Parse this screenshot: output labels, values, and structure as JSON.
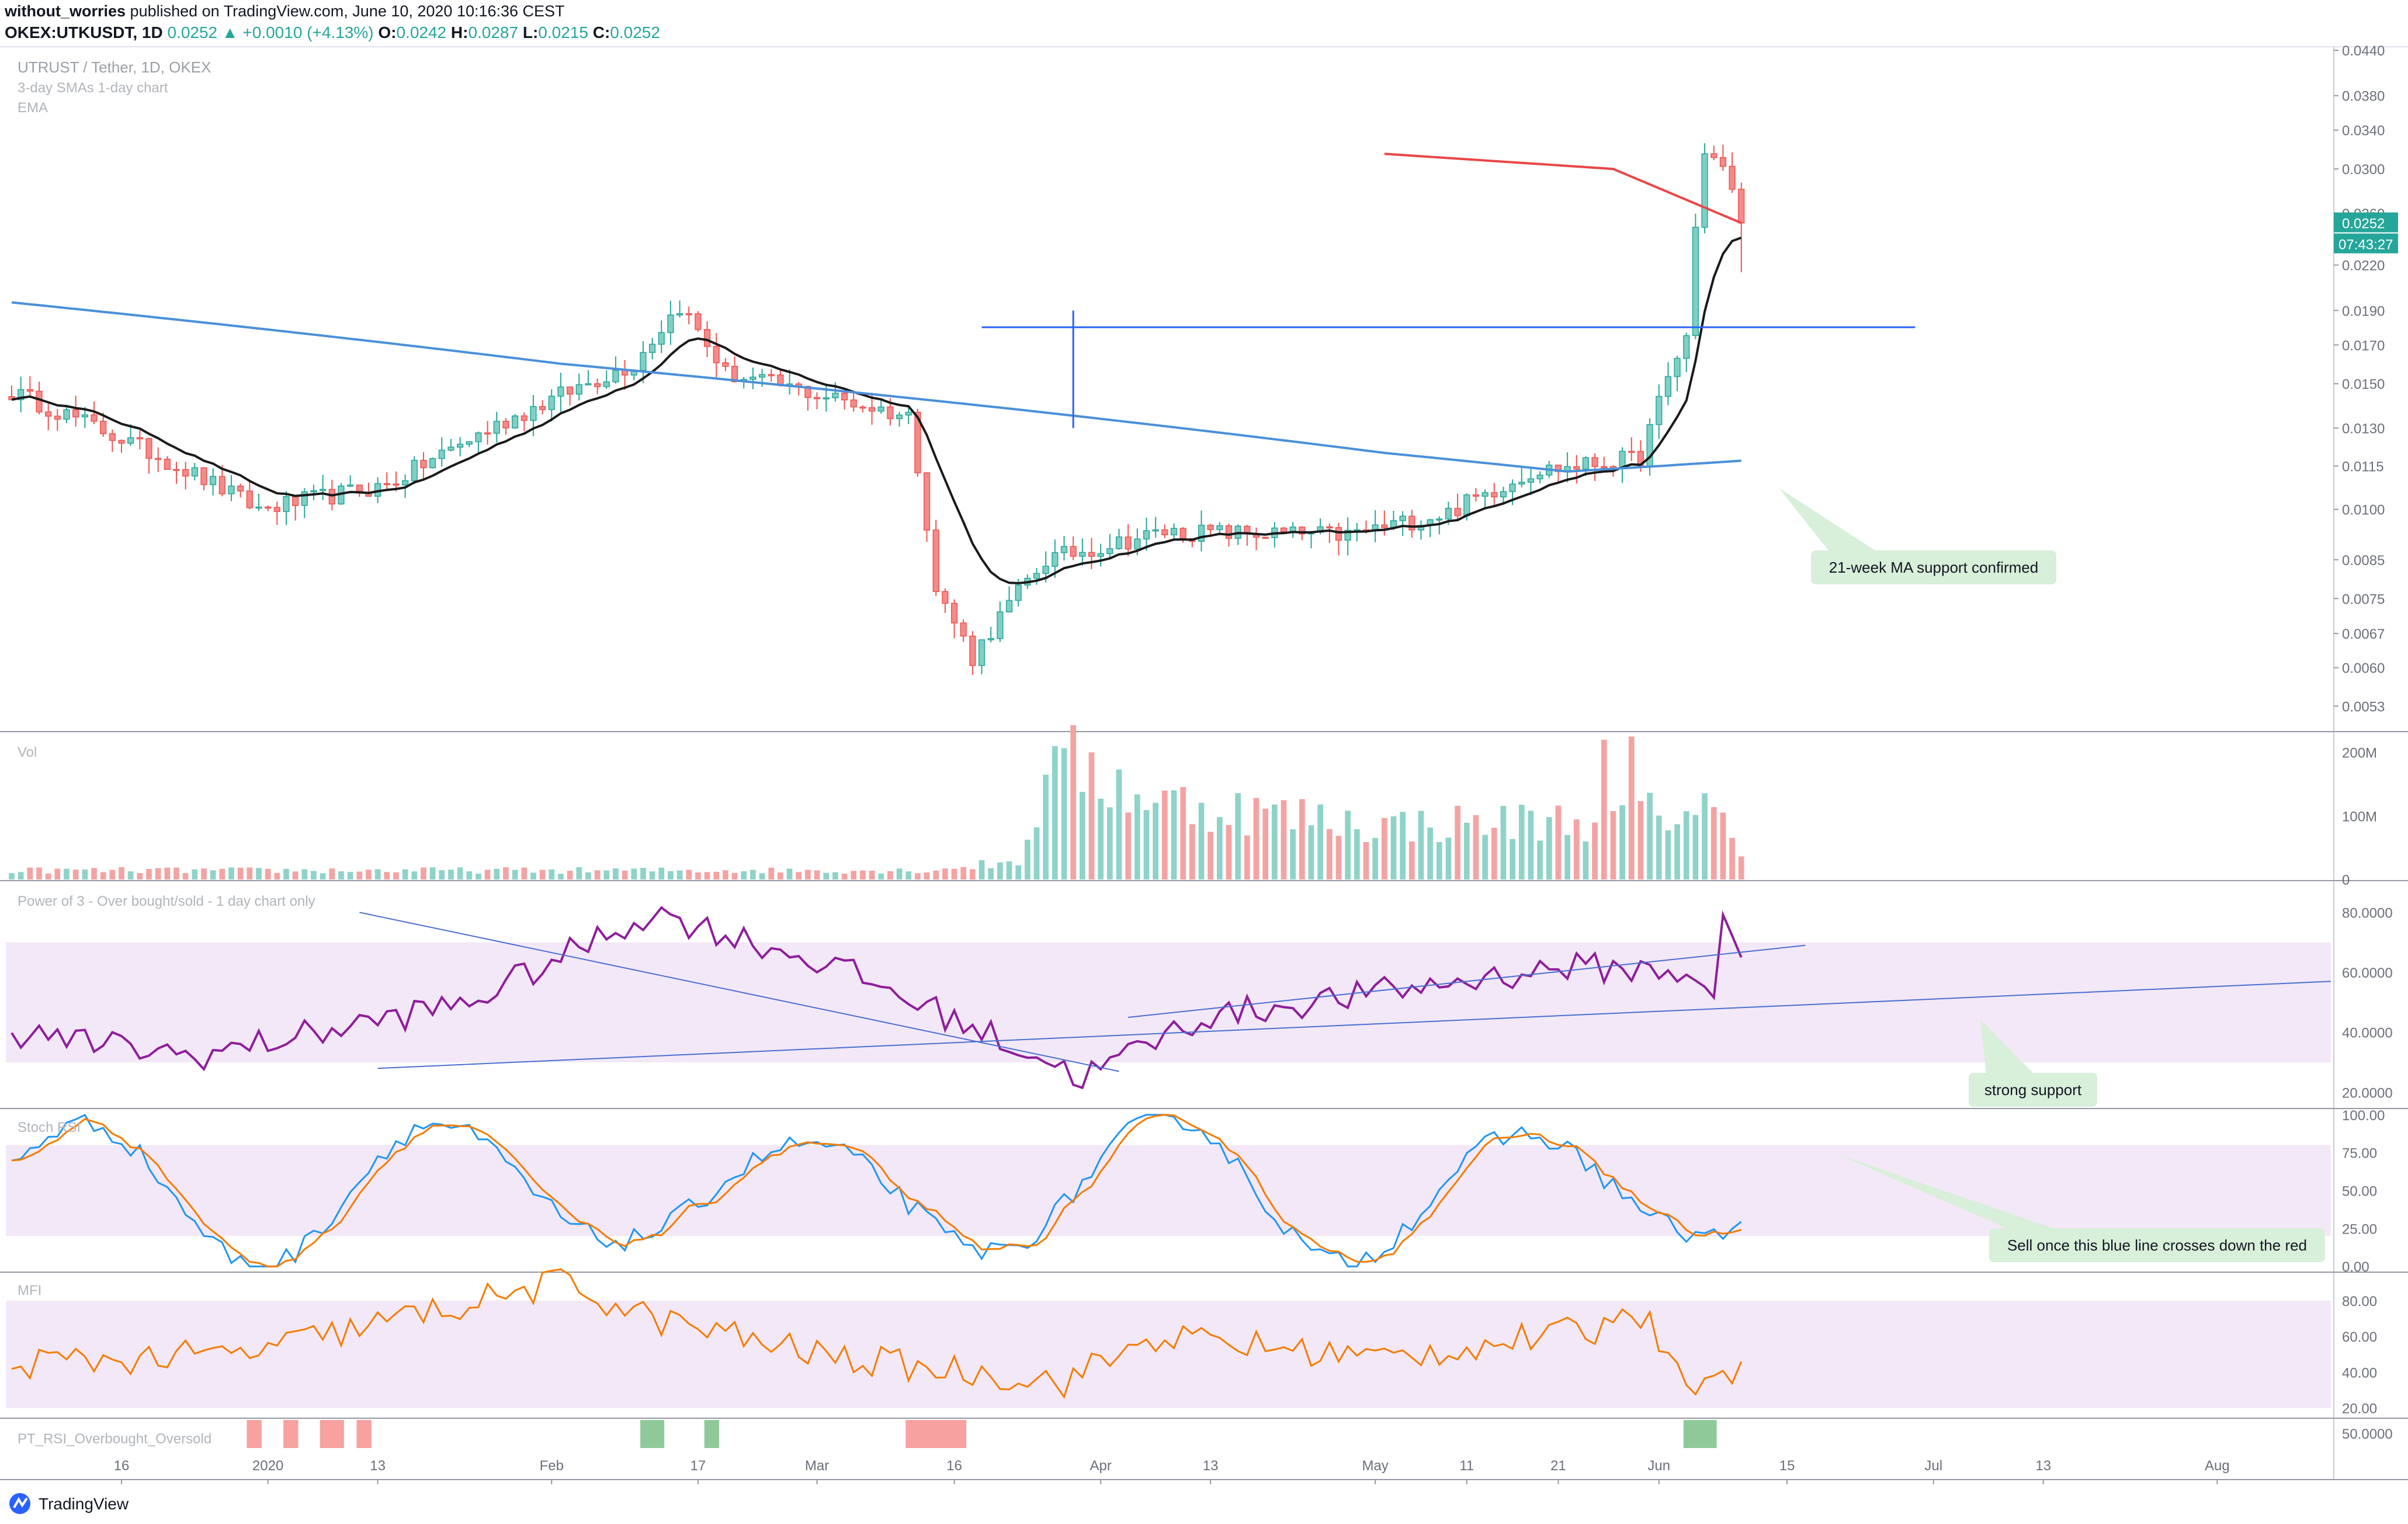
{
  "header": {
    "author": "without_worries",
    "published": "published on TradingView.com, June 10, 2020 10:16:36 CEST",
    "symbol_line": "OKEX:UTKUSDT, 1D",
    "last": "0.0252",
    "change": "+0.0010 (+4.13%)",
    "open_label": "O:",
    "open": "0.0242",
    "high_label": "H:",
    "high": "0.0287",
    "low_label": "L:",
    "low": "0.0215",
    "close_label": "C:",
    "close": "0.0252"
  },
  "main_legend": {
    "title": "UTRUST / Tether, 1D, OKEX",
    "line2": "3-day SMAs 1-day chart",
    "line3": "EMA"
  },
  "price_axis": {
    "ticks": [
      "0.0440",
      "0.0380",
      "0.0340",
      "0.0300",
      "0.0260",
      "0.0220",
      "0.0190",
      "0.0170",
      "0.0150",
      "0.0130",
      "0.0115",
      "0.0100",
      "0.0085",
      "0.0075",
      "0.0067",
      "0.0060",
      "0.0053"
    ],
    "last_price_label": "0.0252",
    "countdown_label": "07:43:27"
  },
  "volume_pane": {
    "title": "Vol",
    "ticks": [
      "200M",
      "100M",
      "0"
    ]
  },
  "power3_pane": {
    "title": "Power of 3 - Over bought/sold - 1 day chart only",
    "ticks": [
      "80.0000",
      "60.0000",
      "40.0000",
      "20.0000"
    ]
  },
  "stochrsi_pane": {
    "title": "Stoch RSI",
    "ticks": [
      "100.00",
      "75.00",
      "50.00",
      "25.00",
      "0.00"
    ]
  },
  "mfi_pane": {
    "title": "MFI",
    "ticks": [
      "80.00",
      "60.00",
      "40.00",
      "20.00"
    ]
  },
  "ptrsi_pane": {
    "title": "PT_RSI_Overbought_Oversold",
    "ticks": [
      "50.0000"
    ]
  },
  "time_axis": {
    "labels": [
      "16",
      "2020",
      "13",
      "Feb",
      "17",
      "Mar",
      "16",
      "Apr",
      "13",
      "May",
      "11",
      "21",
      "Jun",
      "15",
      "Jul",
      "13",
      "Aug"
    ]
  },
  "annotations": {
    "ma_support": "21-week MA support confirmed",
    "strong_support": "strong support",
    "sell_note": "Sell once this blue line crosses down the red"
  },
  "footer": {
    "logo_text": "TradingView"
  },
  "colors": {
    "up": "#26a69a",
    "down": "#ef5350",
    "up_candle_fill": "#7fcfc4",
    "down_candle_fill": "#f48a8a",
    "ema_black": "#1a1a1a",
    "ma_blue": "#4a90d9",
    "red_ma": "#e84747",
    "power3": "#8e1e9b",
    "stoch_k": "#2196f3",
    "stoch_d": "#f57c00",
    "mfi": "#f57c00",
    "band": "#f3e8f7",
    "callout": "#d8efd9"
  },
  "chart_data": [
    {
      "type": "candlestick",
      "title": "UTRUST / Tether, 1D, OKEX",
      "scale": "log",
      "ylim": [
        0.0049,
        0.0445
      ],
      "x_range": [
        "2019-12-04",
        "2020-08-08"
      ],
      "candles_date_span": [
        "2019-12-04",
        "2020-06-10"
      ],
      "key_points": [
        {
          "date": "2019-12-04",
          "close": 0.0146
        },
        {
          "date": "2019-12-31",
          "close": 0.01
        },
        {
          "date": "2020-01-14",
          "close": 0.0108
        },
        {
          "date": "2020-02-10",
          "close": 0.016
        },
        {
          "date": "2020-02-15",
          "close": 0.0193
        },
        {
          "date": "2020-02-20",
          "close": 0.0155
        },
        {
          "date": "2020-03-11",
          "close": 0.0135
        },
        {
          "date": "2020-03-14",
          "close": 0.0077
        },
        {
          "date": "2020-03-18",
          "close": 0.0062
        },
        {
          "date": "2020-03-26",
          "close": 0.0085
        },
        {
          "date": "2020-04-08",
          "close": 0.0093
        },
        {
          "date": "2020-04-28",
          "close": 0.0092
        },
        {
          "date": "2020-05-09",
          "close": 0.0099
        },
        {
          "date": "2020-05-18",
          "close": 0.0113
        },
        {
          "date": "2020-05-30",
          "close": 0.0118
        },
        {
          "date": "2020-06-04",
          "close": 0.0175
        },
        {
          "date": "2020-06-06",
          "close": 0.032
        },
        {
          "date": "2020-06-08",
          "close": 0.03
        },
        {
          "date": "2020-06-10",
          "close": 0.0252
        }
      ],
      "overlays": [
        {
          "name": "EMA",
          "color": "black",
          "start": 0.0155,
          "end": 0.018
        },
        {
          "name": "21-week MA",
          "color": "blue",
          "start": 0.0195,
          "end": 0.0117
        },
        {
          "name": "red MA",
          "color": "red",
          "start": 0.0315,
          "end": 0.0252
        },
        {
          "name": "horizontal level",
          "value": 0.018
        }
      ]
    },
    {
      "type": "bar",
      "title": "Vol",
      "ylim": [
        0,
        230000000
      ],
      "peaks": [
        {
          "date": "2020-03-27",
          "value": 210000000
        },
        {
          "date": "2020-05-26",
          "value": 220000000
        },
        {
          "date": "2020-05-29",
          "value": 225000000
        }
      ]
    },
    {
      "type": "line",
      "title": "Power of 3 - Over bought/sold - 1 day chart only",
      "ylim": [
        15,
        90
      ],
      "band": [
        30,
        70
      ],
      "key_points": [
        {
          "date": "2020-02-12",
          "value": 80
        },
        {
          "date": "2020-03-22",
          "value": 25
        },
        {
          "date": "2020-06-07",
          "value": 84
        },
        {
          "date": "2020-06-10",
          "value": 65
        }
      ]
    },
    {
      "type": "line",
      "title": "Stoch RSI",
      "ylim": [
        -3,
        103
      ],
      "band": [
        20,
        80
      ],
      "series": [
        {
          "values_summary": "oscillates 0–100"
        },
        {
          "values_summary": "oscillates 0–100"
        }
      ]
    },
    {
      "type": "line",
      "title": "MFI",
      "ylim": [
        15,
        95
      ],
      "band": [
        20,
        80
      ],
      "key_points": [
        {
          "date": "2020-02-04",
          "value": 90
        },
        {
          "date": "2020-05-26",
          "value": 83
        },
        {
          "date": "2020-06-10",
          "value": 46
        }
      ]
    },
    {
      "type": "bar",
      "title": "PT_RSI_Overbought_Oversold",
      "events": [
        {
          "start": "2019-12-30",
          "end": "2019-12-31",
          "color": "red"
        },
        {
          "start": "2020-01-03",
          "end": "2020-01-04",
          "color": "red"
        },
        {
          "start": "2020-01-07",
          "end": "2020-01-09",
          "color": "red"
        },
        {
          "start": "2020-01-11",
          "end": "2020-01-12",
          "color": "red"
        },
        {
          "start": "2020-02-11",
          "end": "2020-02-13",
          "color": "green"
        },
        {
          "start": "2020-02-18",
          "end": "2020-02-19",
          "color": "green"
        },
        {
          "start": "2020-03-11",
          "end": "2020-03-17",
          "color": "red"
        },
        {
          "start": "2020-06-04",
          "end": "2020-06-07",
          "color": "green"
        }
      ]
    }
  ]
}
